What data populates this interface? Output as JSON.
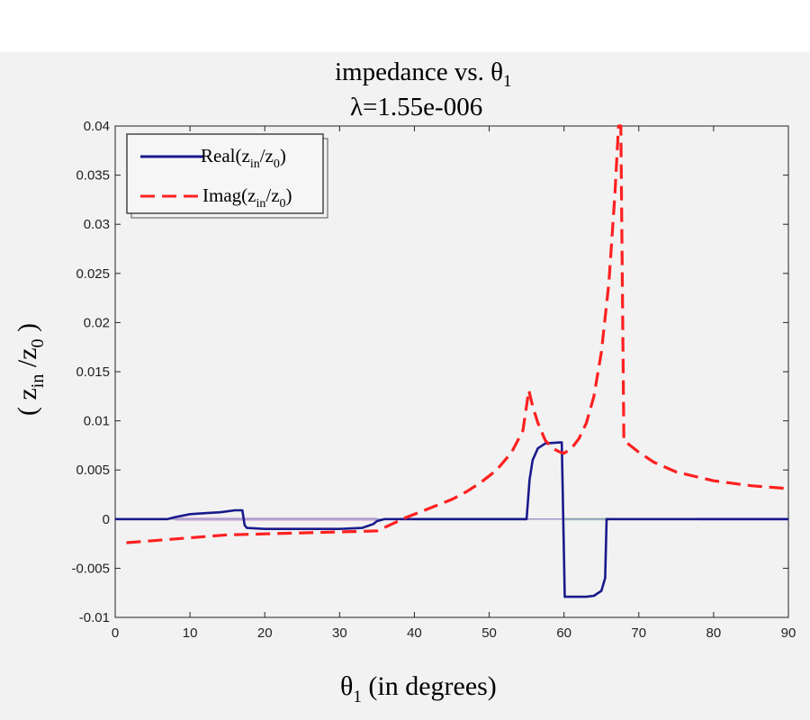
{
  "chart_data": {
    "type": "line",
    "title": {
      "line1_main": "impedance vs. θ",
      "line1_sub": "1",
      "line2": "λ=1.55e-006"
    },
    "xlabel": {
      "main": "θ",
      "sub": "1",
      "rest": " (in degrees)"
    },
    "ylabel": {
      "open": "( z",
      "sub1": "in",
      "mid": " /z",
      "sub2": "0",
      "close": " )"
    },
    "xlim": [
      0,
      90
    ],
    "ylim": [
      -0.01,
      0.04
    ],
    "xticks": [
      "0",
      "10",
      "20",
      "30",
      "40",
      "50",
      "60",
      "70",
      "80",
      "90"
    ],
    "yticks": [
      "-0.01",
      "-0.005",
      "0",
      "0.005",
      "0.01",
      "0.015",
      "0.02",
      "0.025",
      "0.03",
      "0.035",
      "0.04"
    ],
    "legend": {
      "position": "top-left",
      "entries": [
        {
          "prefix": "Real(",
          "z": "z",
          "sub_in": "in",
          "slash": "/z",
          "sub_0": "0",
          "suffix": ")"
        },
        {
          "prefix": "Imag(",
          "z": "z",
          "sub_in": "in",
          "slash": "/z",
          "sub_0": "0",
          "suffix": ")"
        }
      ]
    },
    "colors": {
      "real": "#1a1a8c",
      "imag": "#ff2020",
      "zero_line": "#9a9ac8",
      "fill_early": "#cc88cc",
      "fill_middle": "#88cc88",
      "fill_late": "#d090c0"
    },
    "series": [
      {
        "name": "Real(zin/z0)",
        "style": "solid",
        "x": [
          0,
          7,
          8,
          10,
          12,
          14,
          16,
          17,
          17.3,
          17.6,
          20,
          25,
          30,
          33,
          34.5,
          35,
          36,
          40,
          45,
          50,
          55,
          55.4,
          55.8,
          56.5,
          57.5,
          59.5,
          59.7,
          60.1,
          60.4,
          61,
          62,
          63,
          64,
          65,
          65.5,
          65.7,
          66,
          70,
          75,
          80,
          85,
          90
        ],
        "y": [
          0,
          0,
          0.0002,
          0.0005,
          0.0006,
          0.0007,
          0.0009,
          0.0009,
          -0.0006,
          -0.0009,
          -0.001,
          -0.001,
          -0.001,
          -0.0009,
          -0.0005,
          -0.0002,
          0,
          0,
          0,
          0,
          0,
          0.004,
          0.006,
          0.0072,
          0.0077,
          0.0078,
          0.0078,
          -0.0079,
          -0.0079,
          -0.0079,
          -0.0079,
          -0.0079,
          -0.0078,
          -0.0073,
          -0.006,
          0,
          0,
          0,
          0,
          0,
          0,
          0
        ]
      },
      {
        "name": "Imag(zin/z0)",
        "style": "dashed",
        "x": [
          1.5,
          5,
          10,
          15,
          20,
          25,
          30,
          35,
          37,
          39,
          41,
          43,
          45,
          47,
          49,
          51,
          53,
          54.5,
          55.3,
          55.8,
          56.5,
          57.5,
          58.5,
          59.5,
          60,
          61,
          62,
          63,
          64,
          65,
          66,
          66.8,
          67.3,
          67.6,
          68,
          70,
          72,
          75,
          80,
          85,
          90
        ],
        "y": [
          -0.0024,
          -0.0022,
          -0.0019,
          -0.0016,
          -0.0015,
          -0.0014,
          -0.0013,
          -0.0012,
          -0.0005,
          0.0002,
          0.0008,
          0.0014,
          0.002,
          0.0028,
          0.0038,
          0.005,
          0.0068,
          0.009,
          0.0131,
          0.0115,
          0.0098,
          0.008,
          0.0072,
          0.0068,
          0.0067,
          0.0072,
          0.0082,
          0.0098,
          0.0125,
          0.017,
          0.024,
          0.033,
          0.04,
          0.04,
          0.008,
          0.0068,
          0.0058,
          0.0048,
          0.0039,
          0.0034,
          0.0031
        ]
      }
    ]
  }
}
